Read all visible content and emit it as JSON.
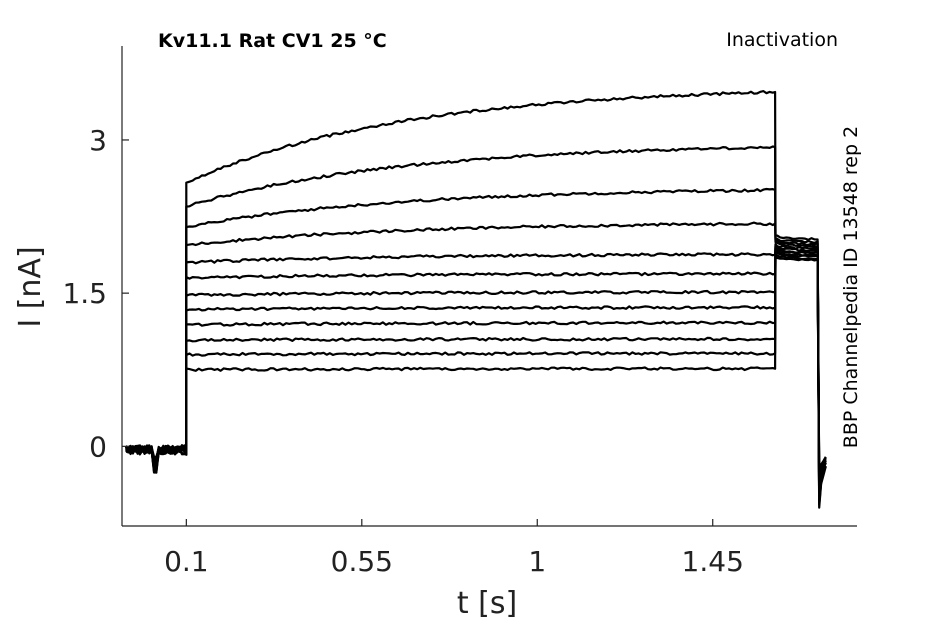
{
  "chart_data": {
    "type": "line",
    "title": "Kv11.1  Rat  CV1  25 °C",
    "annotation_top_right": "Inactivation",
    "annotation_right": "BBP Channelpedia ID 13548 rep 2",
    "xlabel": "t [s]",
    "ylabel": "I [nA]",
    "xlim": [
      -0.065,
      1.82
    ],
    "ylim": [
      -0.78,
      3.92
    ],
    "xticks": [
      0.1,
      0.55,
      1,
      1.45
    ],
    "xtick_labels": [
      "0.1",
      "0.55",
      "1",
      "1.45"
    ],
    "yticks": [
      0,
      1.5,
      3
    ],
    "ytick_labels": [
      "0",
      "1.5",
      "3"
    ],
    "grid": false,
    "pulse_on_s": 0.1,
    "pulse_off_s": 1.61,
    "tail_end_s": 1.72,
    "trace_end_s": 1.74,
    "series": [
      {
        "start": 0.75,
        "end": 0.76,
        "tail": 1.82
      },
      {
        "start": 0.9,
        "end": 0.91,
        "tail": 1.84
      },
      {
        "start": 1.04,
        "end": 1.05,
        "tail": 1.86
      },
      {
        "start": 1.19,
        "end": 1.21,
        "tail": 1.87
      },
      {
        "start": 1.34,
        "end": 1.36,
        "tail": 1.89
      },
      {
        "start": 1.48,
        "end": 1.51,
        "tail": 1.9
      },
      {
        "start": 1.65,
        "end": 1.69,
        "tail": 1.92
      },
      {
        "start": 1.8,
        "end": 1.88,
        "tail": 1.94
      },
      {
        "start": 1.97,
        "end": 2.18,
        "tail": 1.96
      },
      {
        "start": 2.15,
        "end": 2.51,
        "tail": 1.98
      },
      {
        "start": 2.35,
        "end": 2.93,
        "tail": 2.0
      },
      {
        "start": 2.58,
        "end": 3.47,
        "tail": 2.03
      }
    ]
  }
}
